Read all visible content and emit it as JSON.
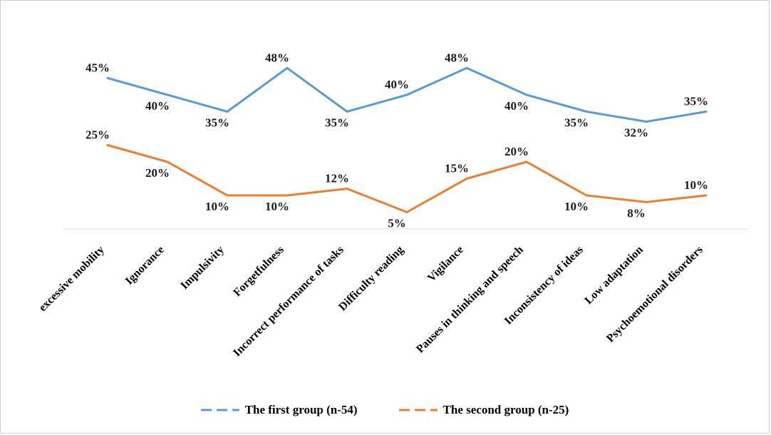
{
  "figure": {
    "background": "#ffffff",
    "border_color": "#cfcfcf",
    "axis_line_color": "#d9d9d9",
    "label_color": "#1a1a1a"
  },
  "legend": {
    "position": "bottom",
    "items": [
      {
        "label": "The first group (n-54)",
        "color": "#5B9BD5"
      },
      {
        "label": "The second group (n-25)",
        "color": "#ED7D31"
      }
    ]
  },
  "chart_data": {
    "type": "line",
    "title": "",
    "xlabel": "",
    "ylabel": "",
    "categories": [
      "excessive mobility",
      "Ignorance",
      "Impulsivity",
      "Forgetfulness",
      "Incorrect performance of tasks",
      "Difficulty reading",
      "Vigilance",
      "Pauses in thinking and speech",
      "Inconsistency of ideas",
      "Low adaptation",
      "Psychoemotional disorders"
    ],
    "series": [
      {
        "name": "The first group (n-54)",
        "color": "#5B9BD5",
        "values": [
          45,
          40,
          35,
          48,
          35,
          40,
          48,
          40,
          35,
          32,
          35
        ]
      },
      {
        "name": "The second group (n-25)",
        "color": "#ED7D31",
        "values": [
          25,
          20,
          10,
          10,
          12,
          5,
          15,
          20,
          10,
          8,
          10
        ]
      }
    ],
    "value_suffix": "%",
    "data_labels": true,
    "ylim": [
      0,
      55
    ],
    "grid": false,
    "legend_position": "bottom",
    "marker": "none"
  }
}
